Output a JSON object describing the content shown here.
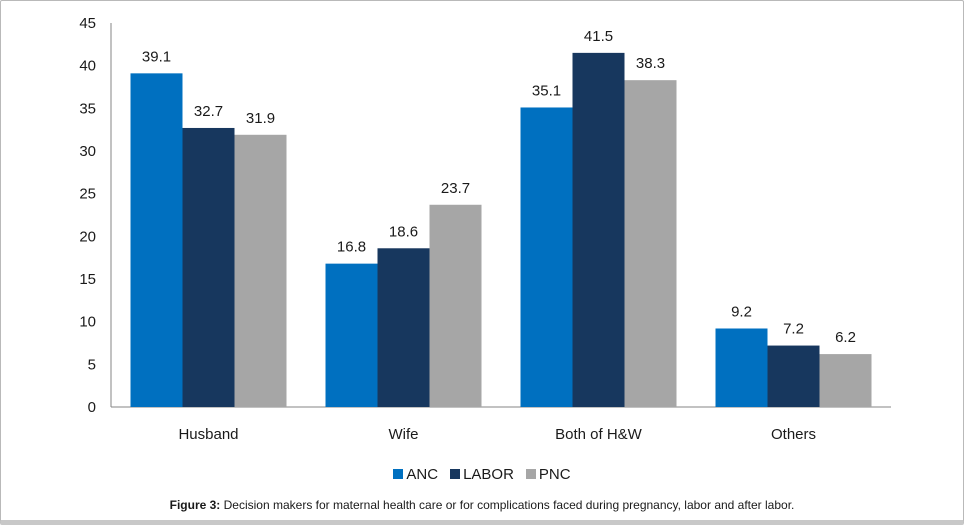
{
  "chart_data": {
    "type": "bar",
    "title": "",
    "xlabel": "",
    "ylabel": "",
    "categories": [
      "Husband",
      "Wife",
      "Both of H&W",
      "Others"
    ],
    "series": [
      {
        "name": "ANC",
        "color": "#0070c0",
        "values": [
          39.1,
          16.8,
          35.1,
          9.2
        ]
      },
      {
        "name": "LABOR",
        "color": "#17375e",
        "values": [
          32.7,
          18.6,
          41.5,
          7.2
        ]
      },
      {
        "name": "PNC",
        "color": "#a6a6a6",
        "values": [
          31.9,
          23.7,
          38.3,
          6.2
        ]
      }
    ],
    "ylim": [
      0,
      45
    ],
    "yticks": [
      0,
      5,
      10,
      15,
      20,
      25,
      30,
      35,
      40,
      45
    ],
    "grid": false,
    "data_labels": true,
    "legend_position": "bottom"
  },
  "caption": {
    "label": "Figure 3:",
    "text": " Decision makers for maternal health care or for complications faced during pregnancy, labor and after labor."
  }
}
